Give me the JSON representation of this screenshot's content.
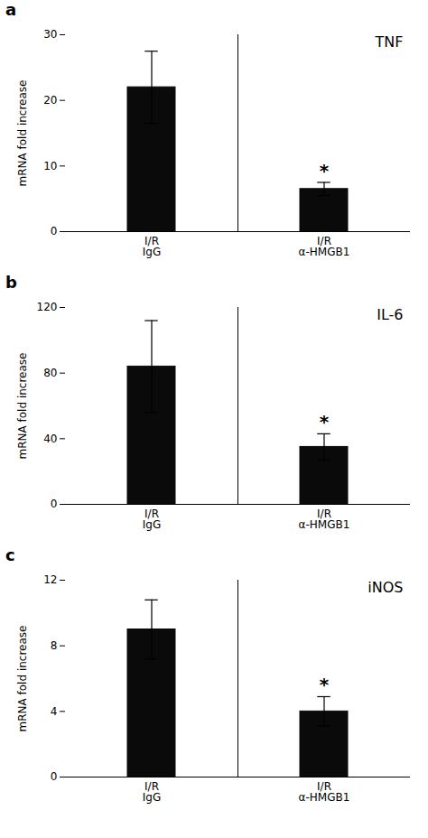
{
  "chart_data": [
    {
      "type": "bar",
      "panel_label": "a",
      "title": "TNF",
      "ylabel": "mRNA fold increase",
      "categories": [
        "I/R\nIgG",
        "I/R\nα-HMGB1"
      ],
      "values": [
        22.0,
        6.5
      ],
      "errors": [
        5.5,
        1.0
      ],
      "color": "#0a0a0a",
      "ylim": [
        0,
        30
      ],
      "yticks": [
        0,
        10,
        20,
        30
      ],
      "grid": false,
      "annotations": [
        {
          "text": "*",
          "category": "I/R\nα-HMGB1"
        }
      ]
    },
    {
      "type": "bar",
      "panel_label": "b",
      "title": "IL-6",
      "ylabel": "mRNA fold increase",
      "categories": [
        "I/R\nIgG",
        "I/R\nα-HMGB1"
      ],
      "values": [
        84.0,
        35.0
      ],
      "errors": [
        28.0,
        8.0
      ],
      "color": "#0a0a0a",
      "ylim": [
        0,
        120
      ],
      "yticks": [
        0,
        40,
        80,
        120
      ],
      "grid": false,
      "annotations": [
        {
          "text": "*",
          "category": "I/R\nα-HMGB1"
        }
      ]
    },
    {
      "type": "bar",
      "panel_label": "c",
      "title": "iNOS",
      "ylabel": "mRNA fold increase",
      "categories": [
        "I/R\nIgG",
        "I/R\nα-HMGB1"
      ],
      "values": [
        9.0,
        4.0
      ],
      "errors": [
        1.8,
        0.9
      ],
      "color": "#0a0a0a",
      "ylim": [
        0,
        12
      ],
      "yticks": [
        0,
        4,
        8,
        12
      ],
      "grid": false,
      "annotations": [
        {
          "text": "*",
          "category": "I/R\nα-HMGB1"
        }
      ]
    }
  ]
}
